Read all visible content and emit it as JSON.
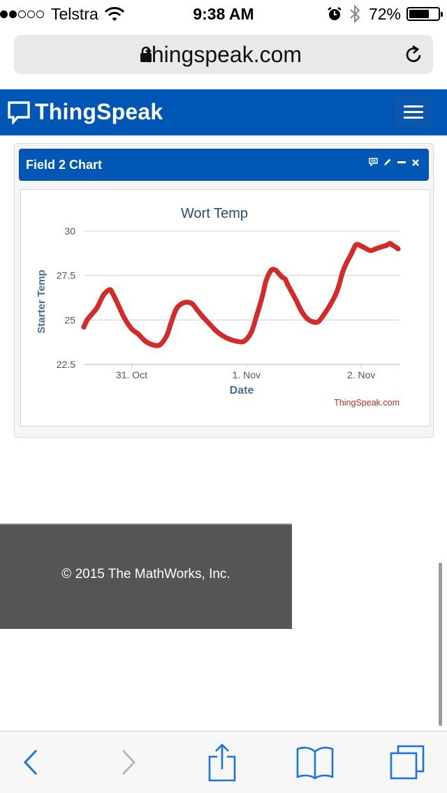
{
  "status_bar": {
    "carrier": "Telstra",
    "time": "9:38 AM",
    "battery": "72%",
    "signal_bars": 2
  },
  "browser": {
    "url": "thingspeak.com"
  },
  "header": {
    "brand": "ThingSpeak"
  },
  "panel": {
    "title": "Field 2 Chart"
  },
  "chart_data": {
    "type": "line",
    "title": "Wort Temp",
    "ylabel": "Starter Temp",
    "xlabel": "Date",
    "credit": "ThingSpeak.com",
    "ylim": [
      22.5,
      30
    ],
    "y_ticks": [
      "30",
      "27.5",
      "25",
      "22.5"
    ],
    "x_ticks": [
      "31. Oct",
      "1. Nov",
      "2. Nov"
    ],
    "x_unit": "hours since 30. Oct 00:00",
    "x_range": [
      14,
      80
    ],
    "x_tick_hours": [
      24,
      48,
      72
    ],
    "grid": true,
    "series": [
      {
        "name": "",
        "color": "#d42a2a",
        "x": [
          14.0,
          14.7,
          15.6,
          16.8,
          18.1,
          19.4,
          20.0,
          21.1,
          22.5,
          24.0,
          25.4,
          26.9,
          28.4,
          29.9,
          31.3,
          32.2,
          33.3,
          34.4,
          35.6,
          36.7,
          37.6,
          38.8,
          40.2,
          41.6,
          43.1,
          44.6,
          46.0,
          47.5,
          49.0,
          50.2,
          51.3,
          52.1,
          53.2,
          54.1,
          54.8,
          55.5,
          56.1,
          56.6,
          57.2,
          58.4,
          59.5,
          60.6,
          61.8,
          63.0,
          64.2,
          65.4,
          66.6,
          67.3,
          67.9,
          68.4,
          69.1,
          69.9,
          70.4,
          70.8,
          71.2,
          71.7,
          72.4,
          73.1,
          74.0,
          75.0,
          76.1,
          77.3,
          78.0,
          78.6,
          79.2,
          79.7
        ],
        "y": [
          24.6,
          25.0,
          25.3,
          25.7,
          26.4,
          26.7,
          26.5,
          25.9,
          25.1,
          24.5,
          24.2,
          23.8,
          23.6,
          23.6,
          24.1,
          24.8,
          25.6,
          25.9,
          26.0,
          25.9,
          25.6,
          25.2,
          24.8,
          24.4,
          24.1,
          23.9,
          23.8,
          23.8,
          24.3,
          25.3,
          26.3,
          27.2,
          27.8,
          27.8,
          27.6,
          27.4,
          27.3,
          27.0,
          26.7,
          26.1,
          25.5,
          25.1,
          24.9,
          24.9,
          25.3,
          25.8,
          26.4,
          26.9,
          27.5,
          27.9,
          28.3,
          28.7,
          29.0,
          29.2,
          29.25,
          29.2,
          29.1,
          29.0,
          28.9,
          29.0,
          29.1,
          29.2,
          29.3,
          29.2,
          29.1,
          29.0
        ]
      }
    ]
  }
}
